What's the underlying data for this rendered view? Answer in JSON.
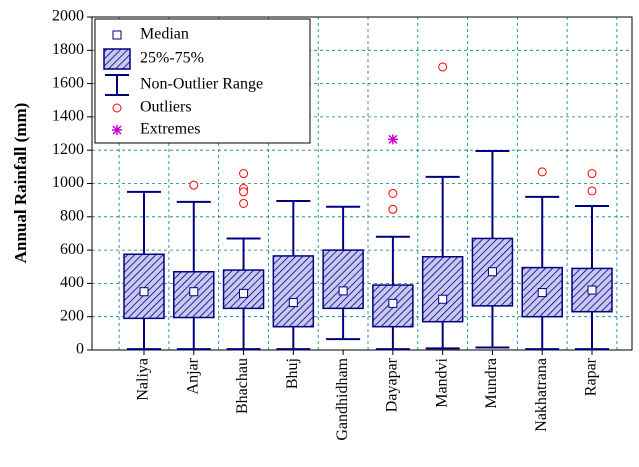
{
  "chart_data": {
    "type": "box",
    "y_label": "Annual Rainfall (mm)",
    "categories": [
      "Naliya",
      "Anjar",
      "Bhachau",
      "Bhuj",
      "Gandhidham",
      "Dayapar",
      "Mandvi",
      "Mundra",
      "Nakhatrana",
      "Rapar"
    ],
    "min": [
      5,
      5,
      5,
      5,
      65,
      5,
      10,
      15,
      5,
      5
    ],
    "q1": [
      190,
      195,
      250,
      140,
      250,
      140,
      170,
      265,
      200,
      230
    ],
    "median": [
      350,
      350,
      340,
      285,
      355,
      280,
      305,
      470,
      345,
      360
    ],
    "q3": [
      575,
      470,
      480,
      565,
      600,
      390,
      560,
      670,
      495,
      490
    ],
    "max": [
      950,
      890,
      670,
      895,
      860,
      680,
      1040,
      1195,
      920,
      865
    ],
    "outliers": [
      [],
      [
        990
      ],
      [
        1060,
        970,
        950,
        880
      ],
      [],
      [],
      [
        940,
        845
      ],
      [
        1700
      ],
      [],
      [
        1070
      ],
      [
        1060,
        955
      ]
    ],
    "extremes": [
      [],
      [],
      [],
      [],
      [],
      [
        1265
      ],
      [],
      [],
      [],
      []
    ],
    "ylim": [
      0,
      2000
    ],
    "yticks": [
      0,
      200,
      400,
      600,
      800,
      1000,
      1200,
      1400,
      1600,
      1800,
      2000
    ],
    "grid": true,
    "box_color": "#000080",
    "outlier_color": "#ff0000",
    "extreme_color": "#cc00cc",
    "legend": {
      "median": "Median",
      "box": "25%-75%",
      "whisker": "Non-Outlier Range",
      "outliers": "Outliers",
      "extremes": "Extremes"
    }
  }
}
